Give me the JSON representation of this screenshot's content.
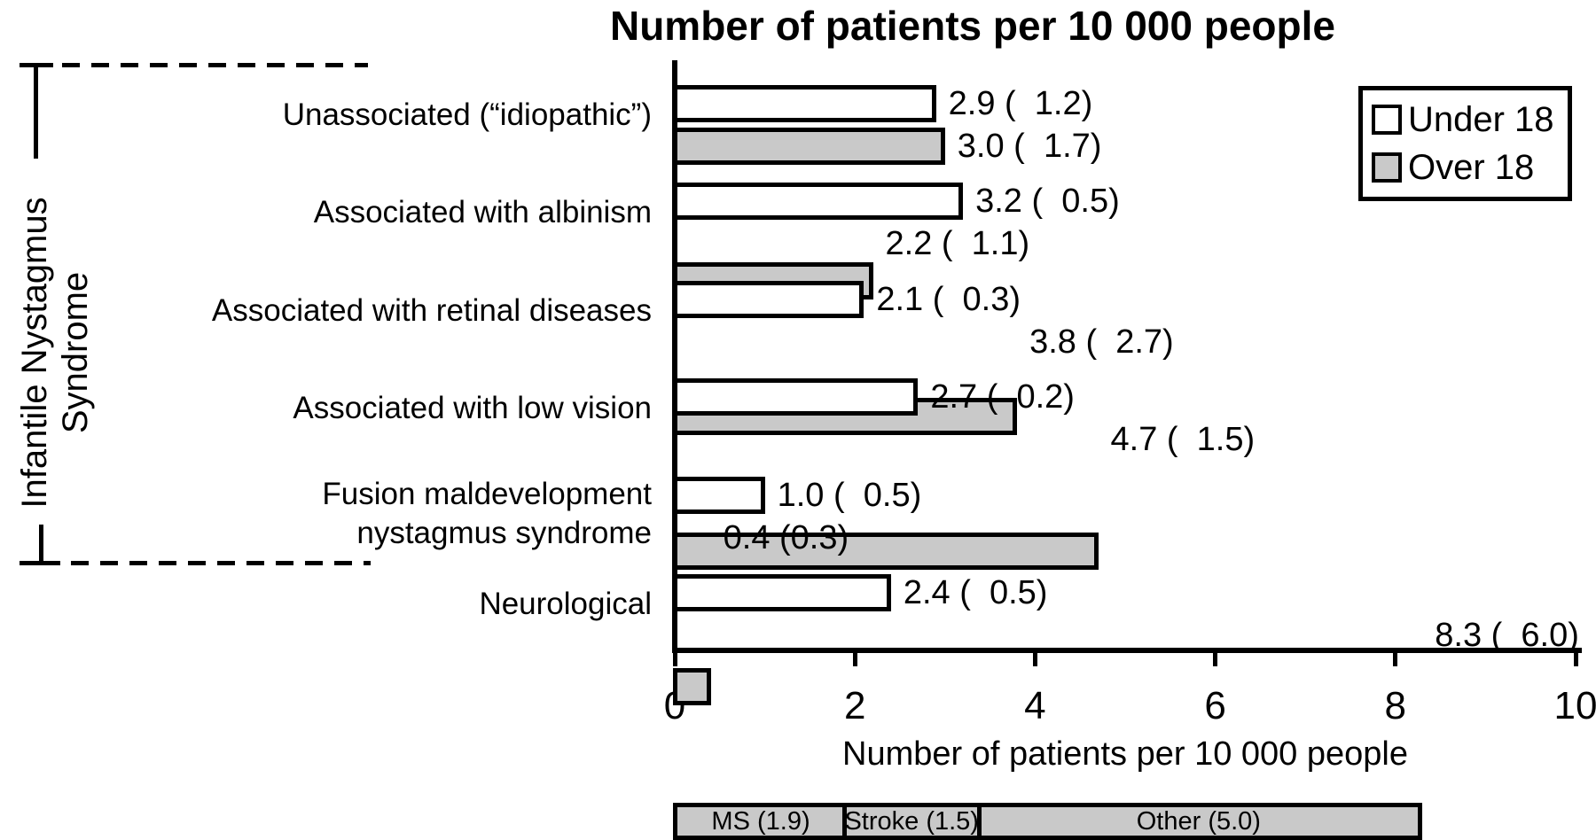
{
  "title": "Number of patients per 10 000 people",
  "chart_data": {
    "type": "bar",
    "orientation": "horizontal",
    "title": "Number of patients per 10 000 people",
    "xlabel": "Number of patients per 10 000 people",
    "xlim": [
      0,
      10
    ],
    "xticks": [
      0,
      2,
      4,
      6,
      8,
      10
    ],
    "grid": false,
    "legend_position": "top-right",
    "legend": [
      {
        "name": "Under 18",
        "fill": "#ffffff"
      },
      {
        "name": "Over 18",
        "fill": "#c9c9c9"
      }
    ],
    "bracket": {
      "label": "Infantile Nystagmus Syndrome",
      "label_lines": [
        "Infantile Nystagmus",
        "Syndrome"
      ],
      "covers_categories": [
        0,
        1,
        2,
        3,
        4
      ]
    },
    "categories": [
      "Unassociated (“idiopathic”)",
      "Associated with albinism",
      "Associated with retinal diseases",
      "Associated with low vision",
      "Fusion maldevelopment\nnystagmus syndrome",
      "Neurological"
    ],
    "series": [
      {
        "name": "Under 18",
        "fill": "#ffffff",
        "values": [
          2.9,
          3.2,
          2.1,
          2.7,
          1.0,
          2.4
        ],
        "value_labels": [
          "2.9 (  1.2)",
          "3.2 (  0.5)",
          "2.1 (  0.3)",
          "2.7 (  0.2)",
          "1.0 (  0.5)",
          "2.4 (  0.5)"
        ]
      },
      {
        "name": "Over 18",
        "fill": "#c9c9c9",
        "values": [
          3.0,
          2.2,
          3.8,
          4.7,
          0.4,
          8.3
        ],
        "value_labels": [
          "3.0 (  1.7)",
          "2.2 (  1.1)",
          "3.8 (  2.7)",
          "4.7 (  1.5)",
          "0.4 (0.3)",
          "8.3 (  6.0)"
        ]
      }
    ],
    "stacked_segments": {
      "category_index": 5,
      "series": "Over 18",
      "segments": [
        {
          "label": "MS (1.9)",
          "value": 1.9
        },
        {
          "label": "Stroke (1.5)",
          "value": 1.5
        },
        {
          "label": "Other (5.0)",
          "value": 5.0
        }
      ]
    }
  }
}
